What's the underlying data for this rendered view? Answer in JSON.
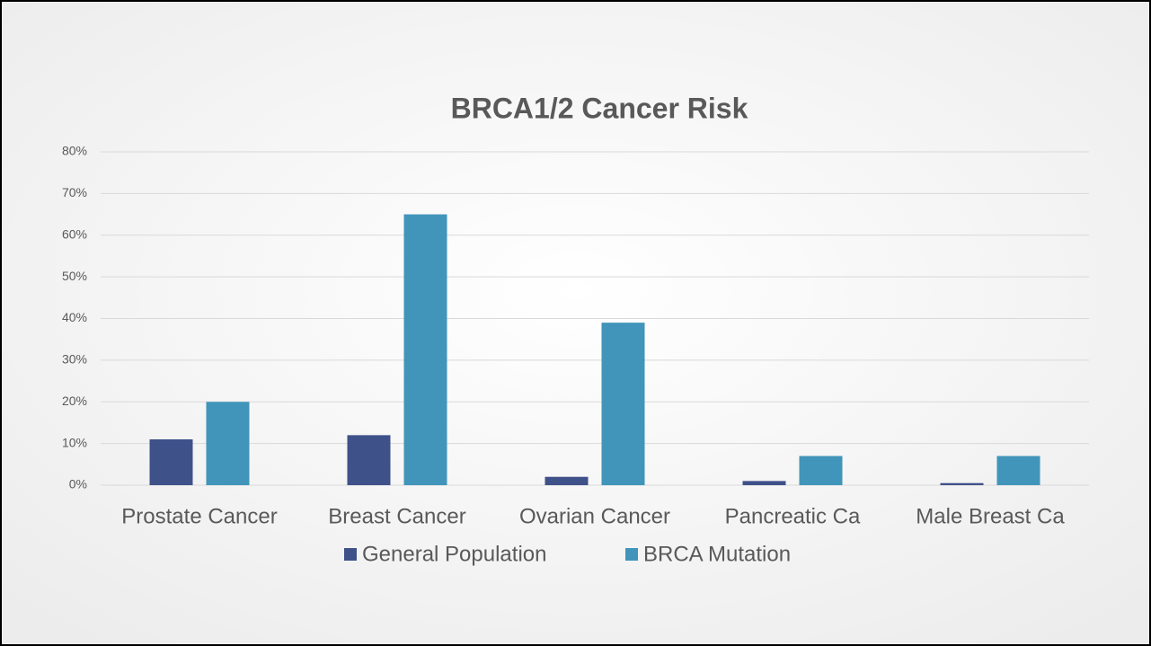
{
  "chart_data": {
    "type": "bar",
    "title": "BRCA1/2 Cancer Risk",
    "categories": [
      "Prostate Cancer",
      "Breast Cancer",
      "Ovarian Cancer",
      "Pancreatic Ca",
      "Male Breast Ca"
    ],
    "series": [
      {
        "name": "General Population",
        "color": "#3f5189",
        "values": [
          11,
          12,
          2,
          1,
          0.5
        ]
      },
      {
        "name": "BRCA Mutation",
        "color": "#4195ba",
        "values": [
          20,
          65,
          39,
          7,
          7
        ]
      }
    ],
    "ylim": [
      0,
      80
    ],
    "yticks": [
      {
        "value": 0,
        "label": "0%"
      },
      {
        "value": 10,
        "label": "10%"
      },
      {
        "value": 20,
        "label": "20%"
      },
      {
        "value": 30,
        "label": "30%"
      },
      {
        "value": 40,
        "label": "40%"
      },
      {
        "value": 50,
        "label": "50%"
      },
      {
        "value": 60,
        "label": "60%"
      },
      {
        "value": 70,
        "label": "70%"
      },
      {
        "value": 80,
        "label": "80%"
      }
    ],
    "grid": true,
    "legend": "bottom"
  }
}
